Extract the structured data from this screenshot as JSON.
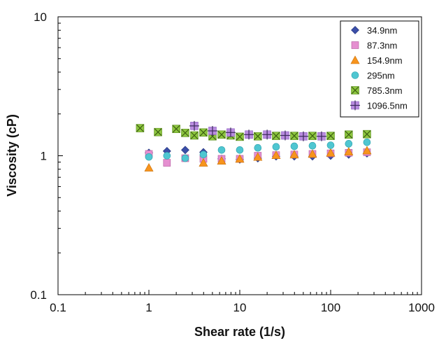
{
  "chart_data": {
    "type": "scatter",
    "title": "",
    "xlabel": "Shear rate (1/s)",
    "ylabel": "Viscosity (cP)",
    "xscale": "log",
    "yscale": "log",
    "xlim": [
      0.1,
      1000
    ],
    "ylim": [
      0.1,
      10
    ],
    "x_ticks": [
      "0.1",
      "1",
      "10",
      "100",
      "1000"
    ],
    "y_ticks": [
      "0.1",
      "1",
      "10"
    ],
    "grid": false,
    "legend_position": "top-right",
    "series": [
      {
        "name": "34.9nm",
        "marker": "diamond",
        "color": "#3b4fa8",
        "x": [
          1.0,
          1.58,
          2.51,
          3.98,
          6.31,
          10.0,
          15.8,
          25.1,
          39.8,
          63.1,
          100,
          158,
          251
        ],
        "y": [
          1.05,
          1.08,
          1.1,
          1.06,
          0.95,
          0.94,
          0.96,
          0.99,
          0.99,
          0.99,
          1.0,
          1.02,
          1.04
        ]
      },
      {
        "name": "87.3nm",
        "marker": "square",
        "color": "#e58fd0",
        "x": [
          1.0,
          1.58,
          2.51,
          3.98,
          6.31,
          10.0,
          15.8,
          25.1,
          39.8,
          63.1,
          100,
          158,
          251
        ],
        "y": [
          1.03,
          0.89,
          0.96,
          0.95,
          0.95,
          0.95,
          1.0,
          1.01,
          1.02,
          1.03,
          1.04,
          1.05,
          1.06
        ]
      },
      {
        "name": "154.9nm",
        "marker": "triangle",
        "color": "#f7941d",
        "x": [
          1.0,
          3.98,
          6.31,
          10.0,
          15.8,
          25.1,
          39.8,
          63.1,
          100,
          158,
          251
        ],
        "y": [
          0.82,
          0.89,
          0.92,
          0.95,
          0.98,
          1.01,
          1.02,
          1.03,
          1.05,
          1.07,
          1.09
        ]
      },
      {
        "name": "295nm",
        "marker": "circle",
        "color": "#4fc6d1",
        "x": [
          1.0,
          1.58,
          2.51,
          3.98,
          6.31,
          10.0,
          15.8,
          25.1,
          39.8,
          63.1,
          100,
          158,
          251
        ],
        "y": [
          0.98,
          1.0,
          0.96,
          1.02,
          1.1,
          1.1,
          1.14,
          1.16,
          1.17,
          1.18,
          1.19,
          1.22,
          1.25
        ]
      },
      {
        "name": "785.3nm",
        "marker": "x-box",
        "color": "#8dc63f",
        "x": [
          0.8,
          1.26,
          2.0,
          2.51,
          3.16,
          3.98,
          5.01,
          6.31,
          7.94,
          10.0,
          15.8,
          25.1,
          39.8,
          63.1,
          100,
          158,
          251
        ],
        "y": [
          1.58,
          1.48,
          1.56,
          1.46,
          1.4,
          1.47,
          1.38,
          1.42,
          1.4,
          1.37,
          1.38,
          1.39,
          1.39,
          1.39,
          1.39,
          1.42,
          1.43
        ]
      },
      {
        "name": "1096.5nm",
        "marker": "plus-box",
        "color": "#b98be0",
        "x": [
          3.16,
          5.01,
          7.94,
          12.6,
          20.0,
          31.6,
          50.1,
          79.4
        ],
        "y": [
          1.64,
          1.51,
          1.47,
          1.42,
          1.42,
          1.4,
          1.38,
          1.38
        ]
      }
    ]
  }
}
